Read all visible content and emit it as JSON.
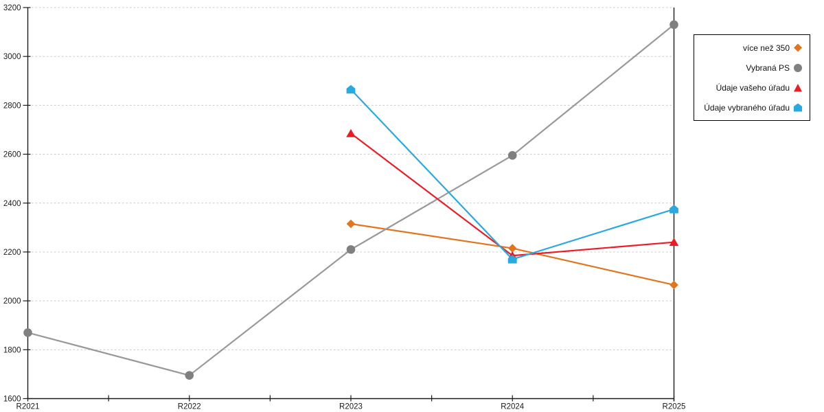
{
  "chart_data": {
    "type": "line",
    "title": "",
    "xlabel": "",
    "ylabel": "",
    "categories": [
      "R2021",
      "R2022",
      "R2023",
      "R2024",
      "R2025"
    ],
    "series": [
      {
        "name": "více než 350",
        "color": "#E2751D",
        "marker": "diamond",
        "values": [
          null,
          null,
          2315,
          2215,
          2065
        ]
      },
      {
        "name": "Vybraná PS",
        "color": "#999999",
        "marker_color": "#808080",
        "marker": "circle",
        "values": [
          1870,
          1695,
          2210,
          2595,
          3130
        ]
      },
      {
        "name": "Údaje vašeho úřadu",
        "color": "#ED1C24",
        "marker": "triangle",
        "values": [
          null,
          null,
          2685,
          2185,
          2240
        ]
      },
      {
        "name": "Údaje vybraného úřadu",
        "color": "#29A9E1",
        "marker": "pentagon",
        "values": [
          null,
          null,
          2865,
          2170,
          2375
        ]
      }
    ],
    "ylim": [
      1600,
      3200
    ],
    "ytick_step": 200,
    "yticks": [
      1600,
      1800,
      2000,
      2200,
      2400,
      2600,
      2800,
      3000,
      3200
    ],
    "grid": "horizontal-dashed",
    "gridline_color": "#C8C8C8",
    "axis_color": "#1A1A1A",
    "legend_position": "right",
    "legend_border_color": "#000000",
    "x_minor_ticks": true
  }
}
